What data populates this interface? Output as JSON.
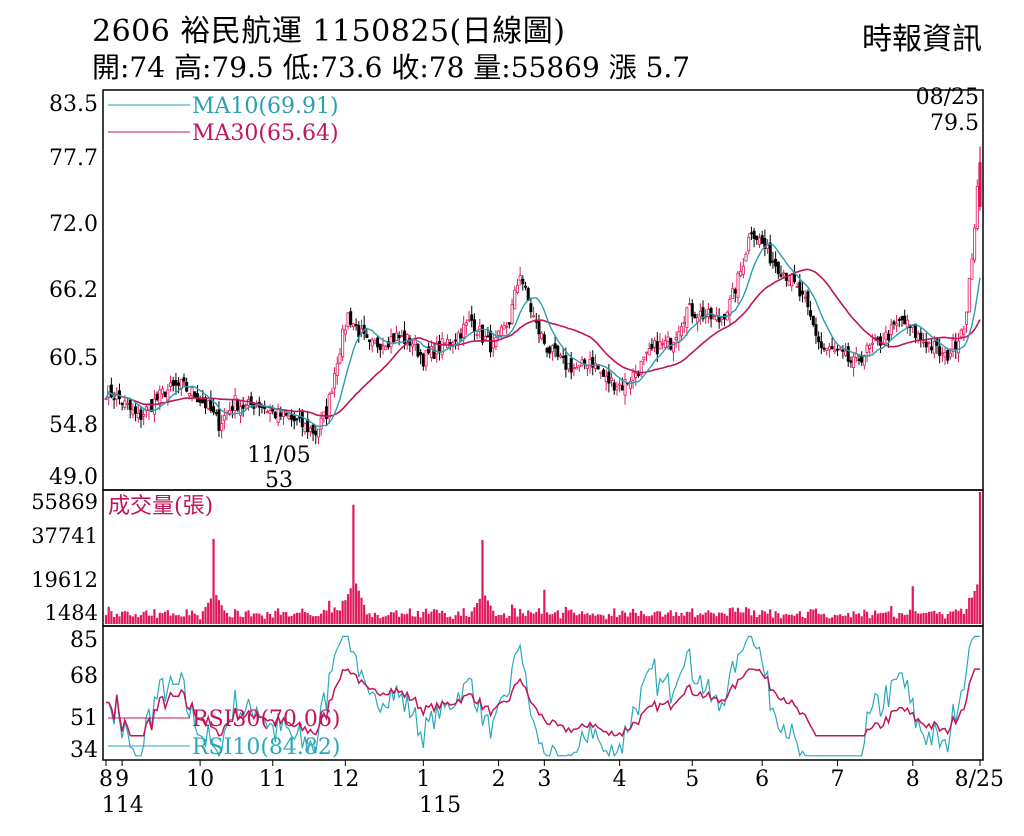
{
  "header": {
    "title": "2606 裕民航運 1150825(日線圖)",
    "summary": "開:74 高:79.5 低:73.6 收:78 量:55869 漲 5.7",
    "source": "時報資訊"
  },
  "colors": {
    "up": "#e0185a",
    "down": "#000000",
    "ma10": "#2a9fb0",
    "ma30": "#c0155a",
    "rsi30": "#c0155a",
    "rsi10": "#2aa9bb",
    "volume": "#e0185a"
  },
  "chart_data": [
    {
      "type": "candlestick",
      "ylim": [
        49.0,
        83.5
      ],
      "y_ticks": [
        "83.5",
        "77.7",
        "72.0",
        "66.2",
        "60.5",
        "54.8",
        "49.0"
      ],
      "legend": [
        {
          "name": "MA10",
          "label": "MA10(69.91)",
          "value": 69.91
        },
        {
          "name": "MA30",
          "label": "MA30(65.64)",
          "value": 65.64
        }
      ],
      "annotations": [
        {
          "date": "11/05",
          "label": "11/05",
          "value_label": "53",
          "value": 53
        },
        {
          "date": "08/25",
          "label": "08/25",
          "value_label": "79.5",
          "value": 79.5
        }
      ],
      "anchors": [
        [
          0,
          57
        ],
        [
          4,
          56.5
        ],
        [
          8,
          55.5
        ],
        [
          12,
          54.5
        ],
        [
          16,
          55.5
        ],
        [
          22,
          57
        ],
        [
          28,
          57.5
        ],
        [
          34,
          56.5
        ],
        [
          38,
          55.5
        ],
        [
          42,
          54
        ],
        [
          48,
          56
        ],
        [
          52,
          55.5
        ],
        [
          56,
          56
        ],
        [
          62,
          55
        ],
        [
          68,
          54.5
        ],
        [
          72,
          54
        ],
        [
          78,
          53.2
        ],
        [
          82,
          55
        ],
        [
          86,
          60
        ],
        [
          90,
          64
        ],
        [
          94,
          62.5
        ],
        [
          98,
          61
        ],
        [
          102,
          61.5
        ],
        [
          108,
          62
        ],
        [
          114,
          61.5
        ],
        [
          118,
          60
        ],
        [
          124,
          61
        ],
        [
          130,
          62
        ],
        [
          136,
          63.5
        ],
        [
          140,
          62
        ],
        [
          144,
          61
        ],
        [
          150,
          63.5
        ],
        [
          154,
          68
        ],
        [
          156,
          66
        ],
        [
          160,
          63
        ],
        [
          164,
          61
        ],
        [
          170,
          59.5
        ],
        [
          176,
          59
        ],
        [
          180,
          60
        ],
        [
          186,
          58
        ],
        [
          192,
          57.5
        ],
        [
          198,
          59
        ],
        [
          204,
          61
        ],
        [
          210,
          61.5
        ],
        [
          216,
          64.5
        ],
        [
          222,
          64
        ],
        [
          228,
          63.5
        ],
        [
          232,
          65
        ],
        [
          236,
          68
        ],
        [
          240,
          72
        ],
        [
          244,
          70.5
        ],
        [
          248,
          69
        ],
        [
          254,
          67.5
        ],
        [
          260,
          65
        ],
        [
          266,
          61
        ],
        [
          272,
          60.5
        ],
        [
          278,
          59.5
        ],
        [
          282,
          60.5
        ],
        [
          290,
          62
        ],
        [
          296,
          63.5
        ],
        [
          302,
          62
        ],
        [
          308,
          61
        ],
        [
          312,
          60
        ],
        [
          316,
          61.5
        ],
        [
          320,
          64
        ],
        [
          325,
          78
        ]
      ],
      "series": [
        {
          "name": "MA10"
        },
        {
          "name": "MA30"
        }
      ]
    },
    {
      "type": "bar",
      "title": "成交量(張)",
      "y_ticks": [
        "55869",
        "37741",
        "19612",
        "1484"
      ],
      "ylim": [
        0,
        55869
      ],
      "spikes": [
        {
          "day": 40,
          "value": 36000
        },
        {
          "day": 92,
          "value": 50500
        },
        {
          "day": 140,
          "value": 35500
        },
        {
          "day": 163,
          "value": 14500
        },
        {
          "day": 300,
          "value": 16000
        },
        {
          "day": 325,
          "value": 55869
        }
      ]
    },
    {
      "type": "line",
      "y_ticks": [
        "85",
        "68",
        "51",
        "34"
      ],
      "ylim": [
        30,
        85
      ],
      "legend": [
        {
          "name": "RSI30",
          "label": "RSI30(70.06)",
          "value": 70.06
        },
        {
          "name": "RSI10",
          "label": "RSI10(84.82)",
          "value": 84.82
        }
      ],
      "series": [
        {
          "name": "RSI30"
        },
        {
          "name": "RSI10"
        }
      ]
    }
  ],
  "x_axis": {
    "labels": [
      {
        "text": "8",
        "day": 0
      },
      {
        "text": "9",
        "day": 6
      },
      {
        "text": "10",
        "day": 35
      },
      {
        "text": "11",
        "day": 62
      },
      {
        "text": "12",
        "day": 89
      },
      {
        "text": "1",
        "day": 118
      },
      {
        "text": "2",
        "day": 146
      },
      {
        "text": "3",
        "day": 163
      },
      {
        "text": "4",
        "day": 191
      },
      {
        "text": "5",
        "day": 218
      },
      {
        "text": "6",
        "day": 244
      },
      {
        "text": "7",
        "day": 272
      },
      {
        "text": "8",
        "day": 300
      },
      {
        "text": "8/25",
        "day": 325
      }
    ],
    "year_labels": [
      {
        "text": "114",
        "day": 4
      },
      {
        "text": "115",
        "day": 122
      }
    ]
  }
}
